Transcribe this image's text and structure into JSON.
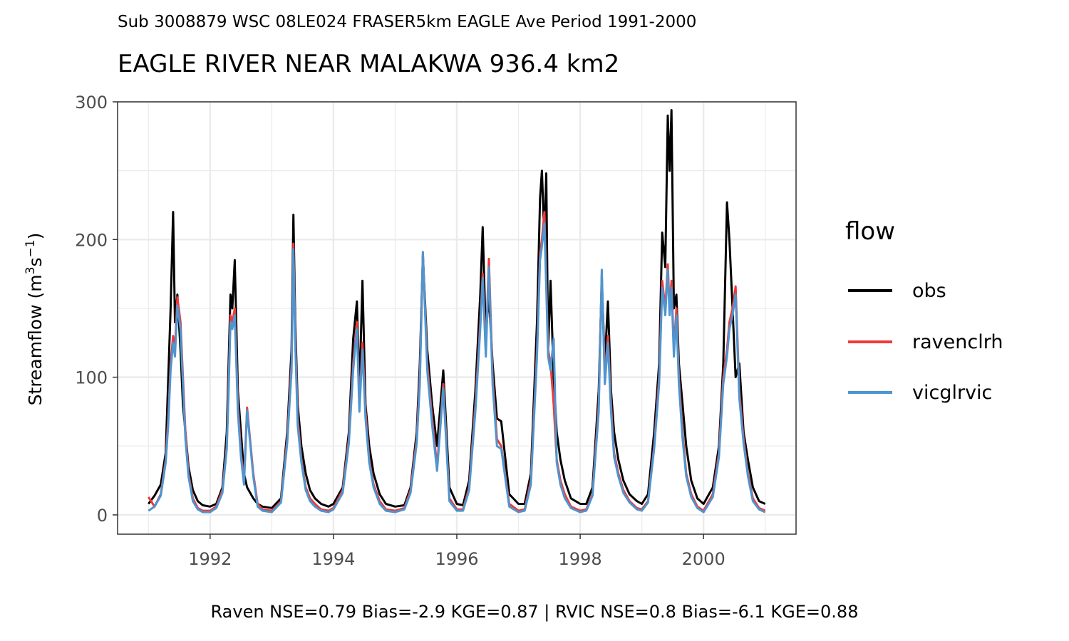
{
  "subtitle": "Sub 3008879 WSC 08LE024 FRASER5km EAGLE Ave Period 1991-2000",
  "title": "EAGLE RIVER NEAR MALAKWA 936.4 km2",
  "caption": "Raven NSE=0.79 Bias=-2.9 KGE=0.87 | RVIC NSE=0.8 Bias=-6.1 KGE=0.88",
  "legend": {
    "title": "flow",
    "items": [
      {
        "label": "obs",
        "color": "#000000"
      },
      {
        "label": "ravenclrh",
        "color": "#ee3a3a"
      },
      {
        "label": "vicglrvic",
        "color": "#4f95cf"
      }
    ]
  },
  "chart_data": {
    "type": "line",
    "xlabel": "",
    "ylabel": "Streamflow (m3s-1)",
    "ylabel_parts": {
      "base": "Streamflow (m",
      "sup1": "3",
      "mid": "s",
      "sup2": "−1",
      "end": ")"
    },
    "xlim": [
      1990.5,
      2001.5
    ],
    "ylim": [
      -14,
      300
    ],
    "x_ticks": [
      1992,
      1994,
      1996,
      1998,
      2000
    ],
    "x_tick_labels": [
      "1992",
      "1994",
      "1996",
      "1998",
      "2000"
    ],
    "y_ticks": [
      0,
      100,
      200,
      300
    ],
    "y_tick_labels": [
      "0",
      "100",
      "200",
      "300"
    ],
    "grid": true,
    "legend_position": "right",
    "x_unit": "decimal year",
    "series": [
      {
        "name": "obs",
        "color": "#000000",
        "x": [
          1991.0,
          1991.1,
          1991.2,
          1991.28,
          1991.32,
          1991.36,
          1991.4,
          1991.43,
          1991.47,
          1991.52,
          1991.56,
          1991.6,
          1991.65,
          1991.72,
          1991.8,
          1991.88,
          1992.0,
          1992.1,
          1992.2,
          1992.27,
          1992.3,
          1992.33,
          1992.36,
          1992.4,
          1992.45,
          1992.5,
          1992.55,
          1992.6,
          1992.7,
          1992.77,
          1992.85,
          1993.0,
          1993.15,
          1993.25,
          1993.32,
          1993.35,
          1993.38,
          1993.42,
          1993.48,
          1993.55,
          1993.62,
          1993.7,
          1993.8,
          1993.92,
          1994.0,
          1994.15,
          1994.25,
          1994.32,
          1994.38,
          1994.42,
          1994.47,
          1994.52,
          1994.58,
          1994.65,
          1994.75,
          1994.85,
          1995.0,
          1995.15,
          1995.25,
          1995.35,
          1995.4,
          1995.45,
          1995.52,
          1995.6,
          1995.68,
          1995.78,
          1995.88,
          1996.0,
          1996.1,
          1996.2,
          1996.3,
          1996.38,
          1996.42,
          1996.47,
          1996.52,
          1996.58,
          1996.65,
          1996.72,
          1996.85,
          1997.0,
          1997.1,
          1997.2,
          1997.3,
          1997.35,
          1997.38,
          1997.42,
          1997.45,
          1997.48,
          1997.52,
          1997.57,
          1997.62,
          1997.68,
          1997.75,
          1997.85,
          1998.0,
          1998.1,
          1998.2,
          1998.3,
          1998.35,
          1998.4,
          1998.45,
          1998.5,
          1998.55,
          1998.62,
          1998.7,
          1998.8,
          1998.92,
          1999.0,
          1999.1,
          1999.2,
          1999.28,
          1999.33,
          1999.38,
          1999.42,
          1999.45,
          1999.48,
          1999.52,
          1999.56,
          1999.6,
          1999.66,
          1999.72,
          1999.8,
          1999.9,
          2000.0,
          2000.15,
          2000.25,
          2000.32,
          2000.38,
          2000.42,
          2000.47,
          2000.52,
          2000.58,
          2000.65,
          2000.72,
          2000.8,
          2000.9,
          2001.0
        ],
        "values": [
          8,
          14,
          22,
          45,
          98,
          150,
          220,
          140,
          160,
          120,
          80,
          60,
          35,
          18,
          10,
          7,
          6,
          8,
          20,
          60,
          110,
          160,
          150,
          185,
          90,
          60,
          30,
          20,
          12,
          8,
          6,
          5,
          12,
          60,
          120,
          218,
          140,
          80,
          50,
          30,
          18,
          12,
          8,
          6,
          8,
          20,
          60,
          128,
          155,
          90,
          170,
          80,
          50,
          30,
          15,
          8,
          6,
          7,
          20,
          60,
          110,
          188,
          120,
          80,
          50,
          105,
          20,
          8,
          7,
          25,
          90,
          160,
          209,
          130,
          160,
          110,
          70,
          68,
          15,
          8,
          8,
          30,
          140,
          230,
          250,
          200,
          248,
          120,
          170,
          100,
          60,
          40,
          25,
          12,
          8,
          8,
          20,
          90,
          170,
          110,
          155,
          90,
          60,
          40,
          25,
          15,
          10,
          8,
          15,
          60,
          110,
          205,
          180,
          290,
          250,
          294,
          150,
          160,
          110,
          80,
          50,
          25,
          12,
          8,
          20,
          50,
          110,
          227,
          200,
          150,
          100,
          110,
          60,
          40,
          20,
          10,
          8
        ]
      },
      {
        "name": "ravenclrh",
        "color": "#ee3a3a",
        "x": [
          1991.0,
          1991.1,
          1991.2,
          1991.28,
          1991.32,
          1991.36,
          1991.4,
          1991.43,
          1991.47,
          1991.52,
          1991.56,
          1991.6,
          1991.65,
          1991.72,
          1991.8,
          1991.88,
          1992.0,
          1992.1,
          1992.2,
          1992.27,
          1992.3,
          1992.33,
          1992.36,
          1992.4,
          1992.45,
          1992.5,
          1992.55,
          1992.6,
          1992.7,
          1992.77,
          1992.85,
          1993.0,
          1993.15,
          1993.25,
          1993.32,
          1993.35,
          1993.38,
          1993.42,
          1993.48,
          1993.55,
          1993.62,
          1993.7,
          1993.8,
          1993.92,
          1994.0,
          1994.15,
          1994.25,
          1994.32,
          1994.38,
          1994.42,
          1994.47,
          1994.52,
          1994.58,
          1994.65,
          1994.75,
          1994.85,
          1995.0,
          1995.15,
          1995.25,
          1995.35,
          1995.4,
          1995.45,
          1995.52,
          1995.6,
          1995.68,
          1995.78,
          1995.88,
          1996.0,
          1996.1,
          1996.2,
          1996.3,
          1996.38,
          1996.42,
          1996.47,
          1996.52,
          1996.58,
          1996.65,
          1996.72,
          1996.85,
          1997.0,
          1997.1,
          1997.2,
          1997.3,
          1997.35,
          1997.38,
          1997.42,
          1997.45,
          1997.48,
          1997.52,
          1997.57,
          1997.62,
          1997.68,
          1997.75,
          1997.85,
          1998.0,
          1998.1,
          1998.2,
          1998.3,
          1998.35,
          1998.4,
          1998.45,
          1998.5,
          1998.55,
          1998.62,
          1998.7,
          1998.8,
          1998.92,
          1999.0,
          1999.1,
          1999.2,
          1999.28,
          1999.33,
          1999.38,
          1999.42,
          1999.45,
          1999.48,
          1999.52,
          1999.56,
          1999.6,
          1999.66,
          1999.72,
          1999.8,
          1999.9,
          2000.0,
          2000.15,
          2000.25,
          2000.32,
          2000.38,
          2000.42,
          2000.47,
          2000.52,
          2000.58,
          2000.65,
          2000.72,
          2000.8,
          2000.9,
          2001.0
        ],
        "values": [
          13,
          6,
          15,
          40,
          70,
          110,
          130,
          120,
          158,
          140,
          100,
          60,
          30,
          12,
          5,
          3,
          3,
          6,
          18,
          50,
          95,
          145,
          140,
          150,
          80,
          45,
          25,
          78,
          30,
          8,
          4,
          3,
          10,
          55,
          110,
          197,
          130,
          70,
          40,
          20,
          12,
          8,
          4,
          3,
          5,
          18,
          55,
          110,
          140,
          80,
          125,
          75,
          40,
          22,
          10,
          4,
          3,
          5,
          18,
          55,
          100,
          190,
          110,
          70,
          35,
          95,
          12,
          4,
          4,
          20,
          80,
          140,
          175,
          120,
          186,
          100,
          55,
          50,
          8,
          3,
          4,
          25,
          120,
          190,
          200,
          220,
          170,
          120,
          110,
          80,
          40,
          25,
          15,
          6,
          3,
          4,
          15,
          80,
          175,
          100,
          130,
          80,
          45,
          30,
          18,
          10,
          5,
          4,
          10,
          50,
          100,
          170,
          150,
          182,
          150,
          170,
          120,
          150,
          100,
          60,
          30,
          15,
          6,
          3,
          15,
          45,
          100,
          120,
          140,
          150,
          166,
          90,
          55,
          30,
          12,
          5,
          3
        ]
      },
      {
        "name": "vicglrvic",
        "color": "#4f95cf",
        "x": [
          1991.0,
          1991.1,
          1991.2,
          1991.28,
          1991.32,
          1991.36,
          1991.4,
          1991.43,
          1991.47,
          1991.52,
          1991.56,
          1991.6,
          1991.65,
          1991.72,
          1991.8,
          1991.88,
          1992.0,
          1992.1,
          1992.2,
          1992.27,
          1992.3,
          1992.33,
          1992.36,
          1992.4,
          1992.45,
          1992.5,
          1992.55,
          1992.6,
          1992.7,
          1992.77,
          1992.85,
          1993.0,
          1993.15,
          1993.25,
          1993.32,
          1993.35,
          1993.38,
          1993.42,
          1993.48,
          1993.55,
          1993.62,
          1993.7,
          1993.8,
          1993.92,
          1994.0,
          1994.15,
          1994.25,
          1994.32,
          1994.38,
          1994.42,
          1994.47,
          1994.52,
          1994.58,
          1994.65,
          1994.75,
          1994.85,
          1995.0,
          1995.15,
          1995.25,
          1995.35,
          1995.4,
          1995.45,
          1995.52,
          1995.6,
          1995.68,
          1995.78,
          1995.88,
          1996.0,
          1996.1,
          1996.2,
          1996.3,
          1996.38,
          1996.42,
          1996.47,
          1996.52,
          1996.58,
          1996.65,
          1996.72,
          1996.85,
          1997.0,
          1997.1,
          1997.2,
          1997.3,
          1997.35,
          1997.38,
          1997.42,
          1997.45,
          1997.48,
          1997.52,
          1997.57,
          1997.62,
          1997.68,
          1997.75,
          1997.85,
          1998.0,
          1998.1,
          1998.2,
          1998.3,
          1998.35,
          1998.4,
          1998.45,
          1998.5,
          1998.55,
          1998.62,
          1998.7,
          1998.8,
          1998.92,
          1999.0,
          1999.1,
          1999.2,
          1999.28,
          1999.33,
          1999.38,
          1999.42,
          1999.45,
          1999.48,
          1999.52,
          1999.56,
          1999.6,
          1999.66,
          1999.72,
          1999.8,
          1999.9,
          2000.0,
          2000.15,
          2000.25,
          2000.32,
          2000.38,
          2000.42,
          2000.47,
          2000.52,
          2000.58,
          2000.65,
          2000.72,
          2000.8,
          2000.9,
          2001.0
        ],
        "values": [
          3,
          6,
          14,
          38,
          65,
          105,
          125,
          115,
          152,
          135,
          95,
          55,
          28,
          10,
          4,
          2,
          2,
          5,
          16,
          48,
          90,
          140,
          135,
          145,
          75,
          42,
          22,
          76,
          28,
          6,
          3,
          2,
          9,
          52,
          105,
          193,
          125,
          65,
          38,
          18,
          10,
          6,
          3,
          2,
          4,
          16,
          52,
          105,
          135,
          75,
          120,
          70,
          38,
          20,
          8,
          3,
          2,
          4,
          16,
          52,
          95,
          191,
          105,
          65,
          32,
          92,
          10,
          3,
          3,
          18,
          75,
          135,
          172,
          115,
          180,
          95,
          50,
          48,
          6,
          2,
          3,
          22,
          115,
          185,
          195,
          212,
          165,
          115,
          105,
          128,
          38,
          22,
          12,
          5,
          2,
          3,
          14,
          75,
          178,
          95,
          125,
          75,
          42,
          28,
          16,
          9,
          4,
          3,
          9,
          48,
          95,
          165,
          145,
          178,
          145,
          165,
          115,
          145,
          95,
          55,
          28,
          13,
          5,
          2,
          13,
          42,
          95,
          115,
          135,
          145,
          160,
          85,
          52,
          28,
          10,
          4,
          2
        ]
      }
    ]
  }
}
